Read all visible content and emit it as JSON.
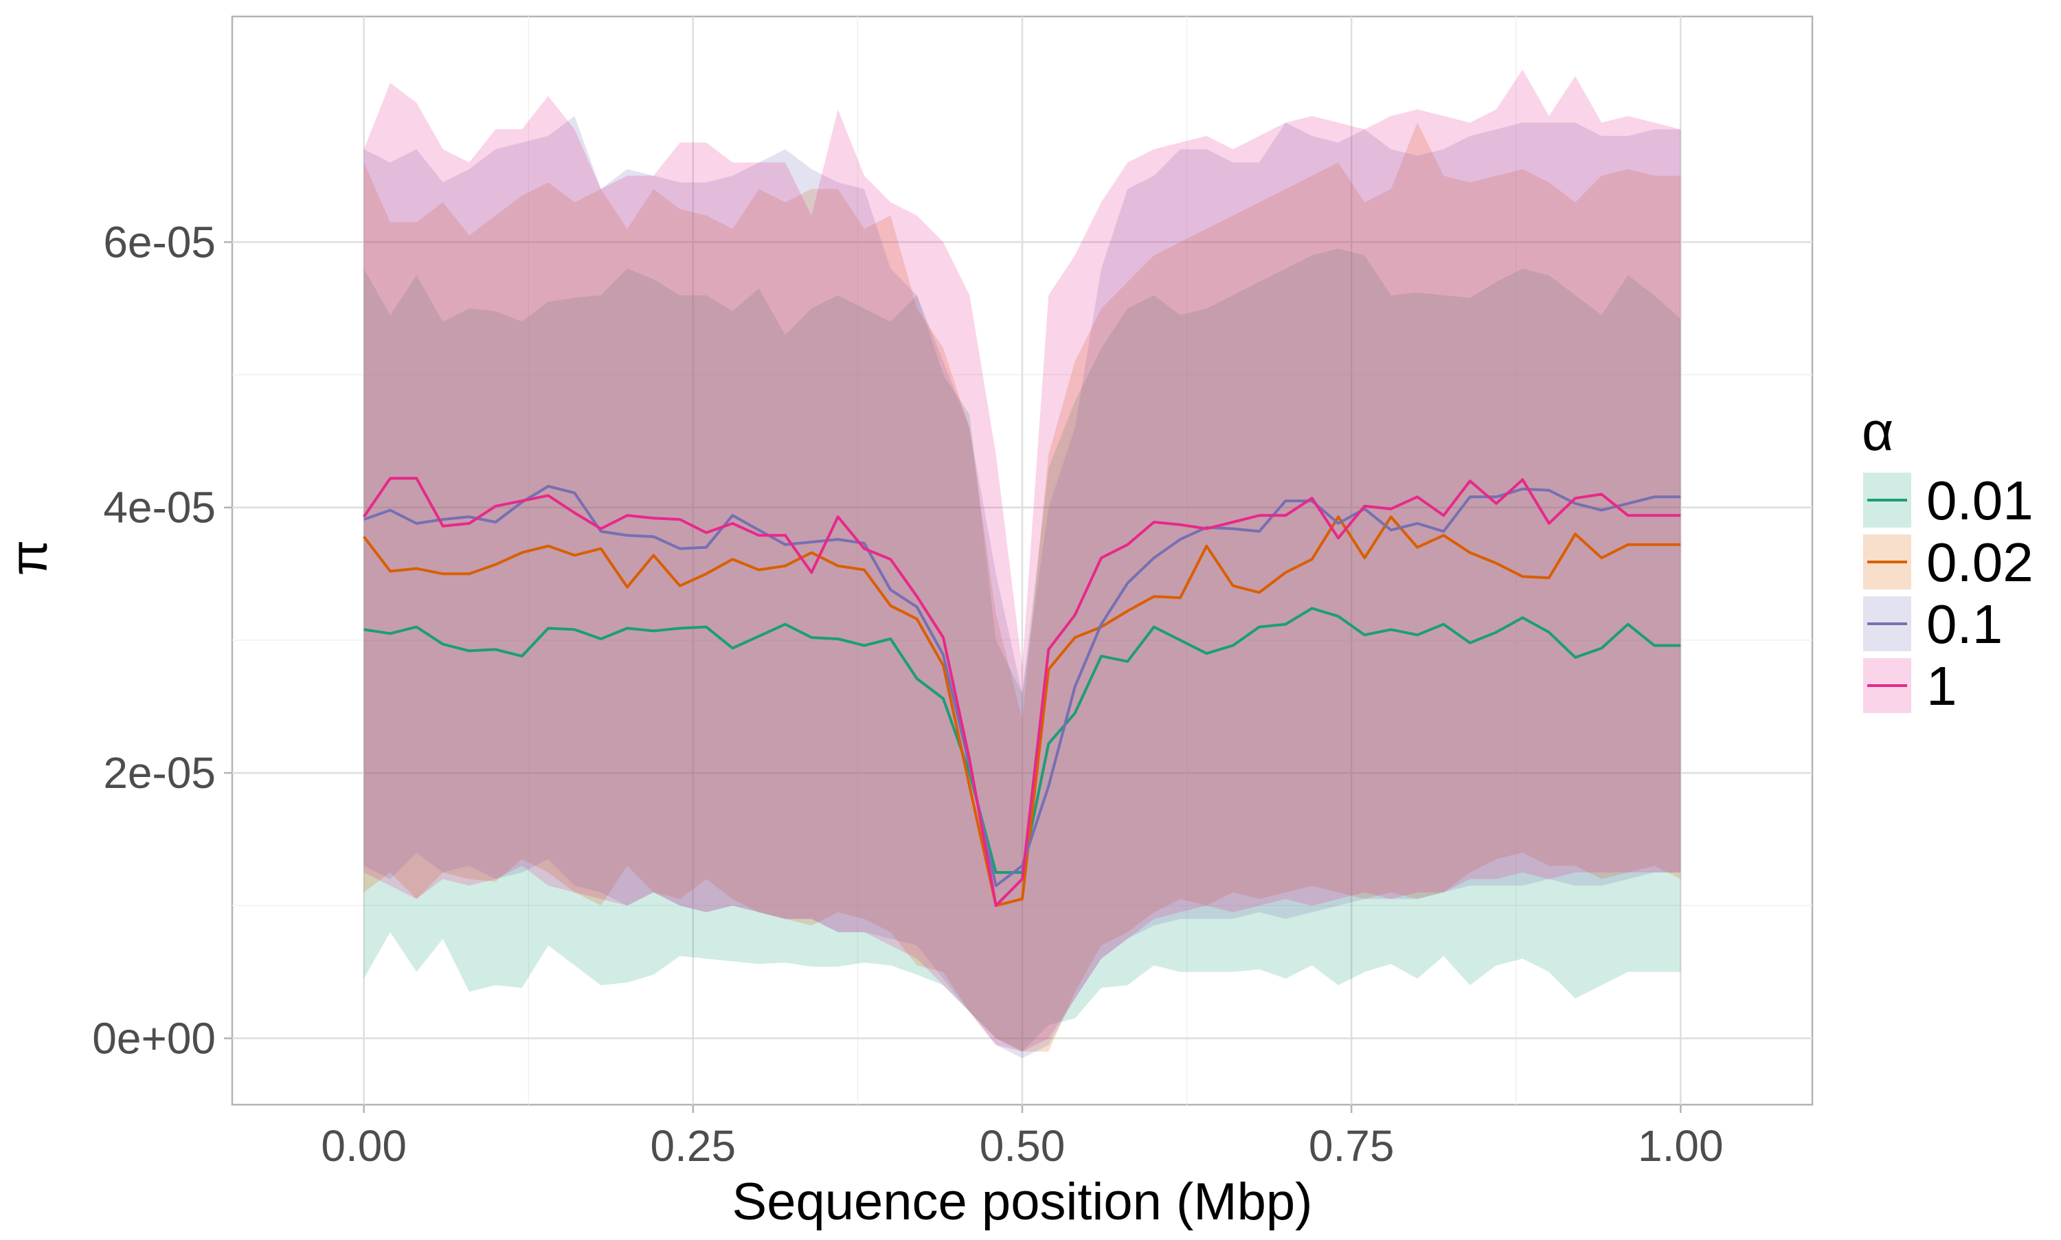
{
  "chart_data": {
    "type": "line",
    "xlabel": "Sequence position (Mbp)",
    "ylabel": "π",
    "xlim": [
      -0.1,
      1.1
    ],
    "ylim": [
      -5e-06,
      7.7e-05
    ],
    "x_ticks": [
      0,
      0.25,
      0.5,
      0.75,
      1
    ],
    "x_tick_labels": [
      "0.00",
      "0.25",
      "0.50",
      "0.75",
      "1.00"
    ],
    "y_ticks": [
      0,
      2e-05,
      4e-05,
      6e-05
    ],
    "y_tick_labels": [
      "0e+00",
      "2e-05",
      "4e-05",
      "6e-05"
    ],
    "grid": true,
    "legend": {
      "title": "α",
      "position": "right"
    },
    "x": [
      0,
      0.02,
      0.04,
      0.06,
      0.08,
      0.1,
      0.12,
      0.14,
      0.16,
      0.18,
      0.2,
      0.22,
      0.24,
      0.26,
      0.28,
      0.3,
      0.32,
      0.34,
      0.36,
      0.38,
      0.4,
      0.42,
      0.44,
      0.46,
      0.48,
      0.5,
      0.52,
      0.54,
      0.56,
      0.58,
      0.6,
      0.62,
      0.64,
      0.66,
      0.68,
      0.7,
      0.72,
      0.74,
      0.76,
      0.78,
      0.8,
      0.82,
      0.84,
      0.86,
      0.88,
      0.9,
      0.92,
      0.94,
      0.96,
      0.98,
      1.0
    ],
    "series": [
      {
        "name": "0.01",
        "color": "#1b9e77",
        "values": [
          3.08e-05,
          3.05e-05,
          3.1e-05,
          2.97e-05,
          2.92e-05,
          2.93e-05,
          2.88e-05,
          3.09e-05,
          3.08e-05,
          3.01e-05,
          3.09e-05,
          3.07e-05,
          3.09e-05,
          3.1e-05,
          2.94e-05,
          3.03e-05,
          3.12e-05,
          3.02e-05,
          3.01e-05,
          2.96e-05,
          3.01e-05,
          2.71e-05,
          2.56e-05,
          2e-05,
          1.25e-05,
          1.25e-05,
          2.22e-05,
          2.45e-05,
          2.88e-05,
          2.84e-05,
          3.1e-05,
          3e-05,
          2.9e-05,
          2.96e-05,
          3.1e-05,
          3.12e-05,
          3.24e-05,
          3.18e-05,
          3.04e-05,
          3.08e-05,
          3.04e-05,
          3.12e-05,
          2.98e-05,
          3.06e-05,
          3.17e-05,
          3.06e-05,
          2.87e-05,
          2.94e-05,
          3.12e-05,
          2.96e-05,
          2.96e-05
        ],
        "lower": [
          4.5e-06,
          8e-06,
          5e-06,
          7.5e-06,
          3.5e-06,
          4e-06,
          3.8e-06,
          7e-06,
          5.5e-06,
          4e-06,
          4.2e-06,
          4.8e-06,
          6.2e-06,
          6e-06,
          5.8e-06,
          5.6e-06,
          5.7e-06,
          5.4e-06,
          5.4e-06,
          5.7e-06,
          5.5e-06,
          4.8e-06,
          4e-06,
          2e-06,
          0.0,
          -1e-06,
          1e-06,
          1.5e-06,
          3.8e-06,
          4e-06,
          5.5e-06,
          5e-06,
          5e-06,
          5e-06,
          5.2e-06,
          4.5e-06,
          5.5e-06,
          4e-06,
          5e-06,
          5.6e-06,
          4.5e-06,
          6.2e-06,
          4e-06,
          5.5e-06,
          6e-06,
          5e-06,
          3e-06,
          4e-06,
          5e-06,
          5e-06,
          5e-06
        ],
        "upper": [
          5.8e-05,
          5.45e-05,
          5.75e-05,
          5.4e-05,
          5.5e-05,
          5.48e-05,
          5.4e-05,
          5.55e-05,
          5.58e-05,
          5.6e-05,
          5.8e-05,
          5.72e-05,
          5.6e-05,
          5.6e-05,
          5.48e-05,
          5.65e-05,
          5.3e-05,
          5.5e-05,
          5.6e-05,
          5.5e-05,
          5.4e-05,
          5.6e-05,
          5e-05,
          4.7e-05,
          3e-05,
          2.6e-05,
          4.3e-05,
          4.8e-05,
          5.2e-05,
          5.5e-05,
          5.6e-05,
          5.45e-05,
          5.5e-05,
          5.6e-05,
          5.7e-05,
          5.8e-05,
          5.9e-05,
          5.95e-05,
          5.9e-05,
          5.6e-05,
          5.62e-05,
          5.6e-05,
          5.58e-05,
          5.7e-05,
          5.8e-05,
          5.75e-05,
          5.6e-05,
          5.45e-05,
          5.75e-05,
          5.6e-05,
          5.42e-05
        ]
      },
      {
        "name": "0.02",
        "color": "#d95f02",
        "values": [
          3.78e-05,
          3.52e-05,
          3.54e-05,
          3.5e-05,
          3.5e-05,
          3.57e-05,
          3.66e-05,
          3.71e-05,
          3.64e-05,
          3.69e-05,
          3.4e-05,
          3.64e-05,
          3.41e-05,
          3.5e-05,
          3.61e-05,
          3.53e-05,
          3.56e-05,
          3.66e-05,
          3.56e-05,
          3.53e-05,
          3.26e-05,
          3.16e-05,
          2.81e-05,
          1.9e-05,
          1e-05,
          1.05e-05,
          2.78e-05,
          3.02e-05,
          3.1e-05,
          3.22e-05,
          3.33e-05,
          3.32e-05,
          3.71e-05,
          3.41e-05,
          3.36e-05,
          3.51e-05,
          3.61e-05,
          3.93e-05,
          3.62e-05,
          3.93e-05,
          3.7e-05,
          3.79e-05,
          3.66e-05,
          3.58e-05,
          3.48e-05,
          3.47e-05,
          3.8e-05,
          3.62e-05,
          3.72e-05,
          3.72e-05,
          3.72e-05
        ],
        "lower": [
          1.1e-05,
          1.25e-05,
          1.05e-05,
          1.25e-05,
          1.2e-05,
          1.18e-05,
          1.35e-05,
          1.25e-05,
          1.1e-05,
          1e-05,
          1.3e-05,
          1.1e-05,
          1.05e-05,
          1.2e-05,
          1.05e-05,
          9.5e-06,
          9e-06,
          8.5e-06,
          9.5e-06,
          9e-06,
          8e-06,
          5.5e-06,
          5e-06,
          2e-06,
          0.0,
          -1e-06,
          -1e-06,
          3.5e-06,
          7e-06,
          8e-06,
          9.5e-06,
          1.05e-05,
          1e-05,
          1.1e-05,
          1.05e-05,
          1.1e-05,
          1.15e-05,
          1.1e-05,
          1.05e-05,
          1.1e-05,
          1.05e-05,
          1.1e-05,
          1.25e-05,
          1.35e-05,
          1.4e-05,
          1.3e-05,
          1.3e-05,
          1.2e-05,
          1.25e-05,
          1.3e-05,
          1.2e-05
        ],
        "upper": [
          6.6e-05,
          6.15e-05,
          6.15e-05,
          6.3e-05,
          6.05e-05,
          6.2e-05,
          6.35e-05,
          6.45e-05,
          6.3e-05,
          6.4e-05,
          6.1e-05,
          6.4e-05,
          6.25e-05,
          6.2e-05,
          6.1e-05,
          6.4e-05,
          6.3e-05,
          6.4e-05,
          6.4e-05,
          6.1e-05,
          6.2e-05,
          5.5e-05,
          5.2e-05,
          4.6e-05,
          3.2e-05,
          2.4e-05,
          4.4e-05,
          5.1e-05,
          5.5e-05,
          5.7e-05,
          5.9e-05,
          6e-05,
          6.1e-05,
          6.2e-05,
          6.3e-05,
          6.4e-05,
          6.5e-05,
          6.6e-05,
          6.3e-05,
          6.4e-05,
          6.9e-05,
          6.5e-05,
          6.45e-05,
          6.5e-05,
          6.55e-05,
          6.45e-05,
          6.3e-05,
          6.5e-05,
          6.55e-05,
          6.5e-05,
          6.5e-05
        ]
      },
      {
        "name": "0.1",
        "color": "#7570b3",
        "values": [
          3.91e-05,
          3.98e-05,
          3.88e-05,
          3.91e-05,
          3.93e-05,
          3.89e-05,
          4.04e-05,
          4.16e-05,
          4.11e-05,
          3.82e-05,
          3.79e-05,
          3.78e-05,
          3.69e-05,
          3.7e-05,
          3.94e-05,
          3.83e-05,
          3.72e-05,
          3.74e-05,
          3.76e-05,
          3.73e-05,
          3.38e-05,
          3.25e-05,
          2.89e-05,
          2.05e-05,
          1.15e-05,
          1.3e-05,
          1.9e-05,
          2.65e-05,
          3.12e-05,
          3.43e-05,
          3.62e-05,
          3.76e-05,
          3.85e-05,
          3.84e-05,
          3.82e-05,
          4.05e-05,
          4.05e-05,
          3.88e-05,
          3.99e-05,
          3.83e-05,
          3.88e-05,
          3.82e-05,
          4.08e-05,
          4.08e-05,
          4.14e-05,
          4.13e-05,
          4.03e-05,
          3.98e-05,
          4.03e-05,
          4.08e-05,
          4.08e-05
        ],
        "lower": [
          1.3e-05,
          1.2e-05,
          1.4e-05,
          1.25e-05,
          1.3e-05,
          1.2e-05,
          1.25e-05,
          1.35e-05,
          1.15e-05,
          1.1e-05,
          1e-05,
          1.1e-05,
          1e-05,
          9.5e-06,
          1e-05,
          9.5e-06,
          9e-06,
          9e-06,
          8e-06,
          8e-06,
          7.5e-06,
          7e-06,
          4.5e-06,
          2e-06,
          -5e-07,
          -1.5e-06,
          -5e-07,
          3e-06,
          6e-06,
          7.5e-06,
          8.5e-06,
          9e-06,
          9e-06,
          9e-06,
          9.5e-06,
          9e-06,
          9.5e-06,
          1e-05,
          1.05e-05,
          1.05e-05,
          1.05e-05,
          1.1e-05,
          1.15e-05,
          1.15e-05,
          1.15e-05,
          1.2e-05,
          1.15e-05,
          1.15e-05,
          1.2e-05,
          1.25e-05,
          1.25e-05
        ],
        "upper": [
          6.7e-05,
          6.6e-05,
          6.7e-05,
          6.45e-05,
          6.55e-05,
          6.7e-05,
          6.75e-05,
          6.8e-05,
          6.95e-05,
          6.4e-05,
          6.55e-05,
          6.5e-05,
          6.45e-05,
          6.45e-05,
          6.5e-05,
          6.6e-05,
          6.7e-05,
          6.55e-05,
          6.45e-05,
          6.4e-05,
          5.8e-05,
          5.6e-05,
          5.1e-05,
          4.6e-05,
          3.5e-05,
          2.6e-05,
          4e-05,
          4.6e-05,
          5.8e-05,
          6.4e-05,
          6.5e-05,
          6.7e-05,
          6.7e-05,
          6.6e-05,
          6.6e-05,
          6.9e-05,
          6.8e-05,
          6.75e-05,
          6.85e-05,
          6.7e-05,
          6.65e-05,
          6.7e-05,
          6.8e-05,
          6.85e-05,
          6.9e-05,
          6.9e-05,
          6.9e-05,
          6.8e-05,
          6.8e-05,
          6.85e-05,
          6.85e-05
        ]
      },
      {
        "name": "1",
        "color": "#e7298a",
        "values": [
          3.93e-05,
          4.22e-05,
          4.22e-05,
          3.86e-05,
          3.88e-05,
          4.01e-05,
          4.05e-05,
          4.09e-05,
          3.96e-05,
          3.84e-05,
          3.94e-05,
          3.92e-05,
          3.91e-05,
          3.81e-05,
          3.88e-05,
          3.79e-05,
          3.79e-05,
          3.51e-05,
          3.93e-05,
          3.69e-05,
          3.61e-05,
          3.33e-05,
          3.02e-05,
          2.1e-05,
          1e-05,
          1.2e-05,
          2.93e-05,
          3.19e-05,
          3.62e-05,
          3.72e-05,
          3.89e-05,
          3.87e-05,
          3.84e-05,
          3.89e-05,
          3.94e-05,
          3.94e-05,
          4.07e-05,
          3.77e-05,
          4.01e-05,
          3.99e-05,
          4.08e-05,
          3.94e-05,
          4.2e-05,
          4.03e-05,
          4.21e-05,
          3.88e-05,
          4.07e-05,
          4.1e-05,
          3.94e-05,
          3.94e-05,
          3.94e-05
        ],
        "lower": [
          1.25e-05,
          1.15e-05,
          1.05e-05,
          1.2e-05,
          1.15e-05,
          1.2e-05,
          1.3e-05,
          1.15e-05,
          1.1e-05,
          1.05e-05,
          1e-05,
          1.1e-05,
          1e-05,
          9.5e-06,
          1e-05,
          9.5e-06,
          9e-06,
          9e-06,
          8e-06,
          8e-06,
          7e-06,
          6e-06,
          4e-06,
          2e-06,
          -5e-07,
          -1e-06,
          0.0,
          3e-06,
          6e-06,
          7.5e-06,
          9e-06,
          9.5e-06,
          1e-05,
          9.5e-06,
          1e-05,
          1.05e-05,
          1e-05,
          1.05e-05,
          1.1e-05,
          1.05e-05,
          1.1e-05,
          1.1e-05,
          1.2e-05,
          1.2e-05,
          1.25e-05,
          1.2e-05,
          1.25e-05,
          1.25e-05,
          1.25e-05,
          1.25e-05,
          1.25e-05
        ],
        "upper": [
          6.7e-05,
          7.2e-05,
          7.05e-05,
          6.7e-05,
          6.6e-05,
          6.85e-05,
          6.85e-05,
          7.1e-05,
          6.85e-05,
          6.4e-05,
          6.5e-05,
          6.5e-05,
          6.75e-05,
          6.75e-05,
          6.6e-05,
          6.6e-05,
          6.6e-05,
          6.2e-05,
          7e-05,
          6.5e-05,
          6.3e-05,
          6.2e-05,
          6e-05,
          5.6e-05,
          4.4e-05,
          2.8e-05,
          5.6e-05,
          5.9e-05,
          6.3e-05,
          6.6e-05,
          6.7e-05,
          6.75e-05,
          6.8e-05,
          6.7e-05,
          6.8e-05,
          6.9e-05,
          6.95e-05,
          6.9e-05,
          6.85e-05,
          6.95e-05,
          7e-05,
          6.95e-05,
          6.9e-05,
          7e-05,
          7.3e-05,
          6.95e-05,
          7.25e-05,
          6.9e-05,
          6.95e-05,
          6.9e-05,
          6.85e-05
        ]
      }
    ]
  }
}
